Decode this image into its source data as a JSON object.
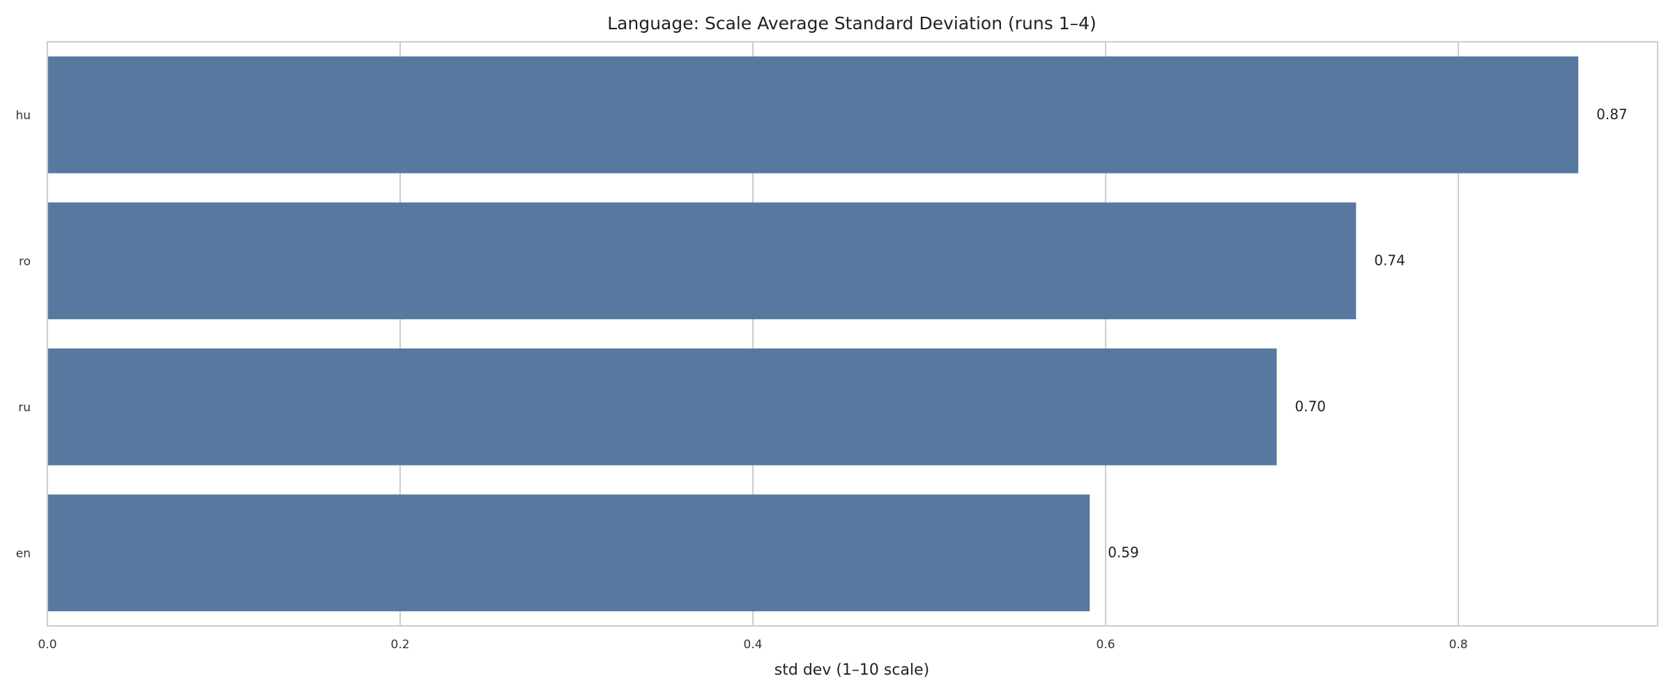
{
  "chart_data": {
    "type": "bar",
    "orientation": "horizontal",
    "title": "Language: Scale Average Standard Deviation (runs 1–4)",
    "xlabel": "std dev (1–10 scale)",
    "ylabel": "",
    "categories": [
      "hu",
      "ro",
      "ru",
      "en"
    ],
    "values": [
      0.868,
      0.742,
      0.697,
      0.591
    ],
    "value_labels": [
      "0.87",
      "0.74",
      "0.70",
      "0.59"
    ],
    "xlim": [
      0,
      0.913
    ],
    "xticks": [
      0.0,
      0.2,
      0.4,
      0.6,
      0.8
    ],
    "xtick_labels": [
      "0.0",
      "0.2",
      "0.4",
      "0.6",
      "0.8"
    ],
    "grid": true,
    "legend": "none",
    "colors": {
      "bar": "#5779a0",
      "grid": "#cccccc",
      "frame": "#cccccc"
    }
  }
}
